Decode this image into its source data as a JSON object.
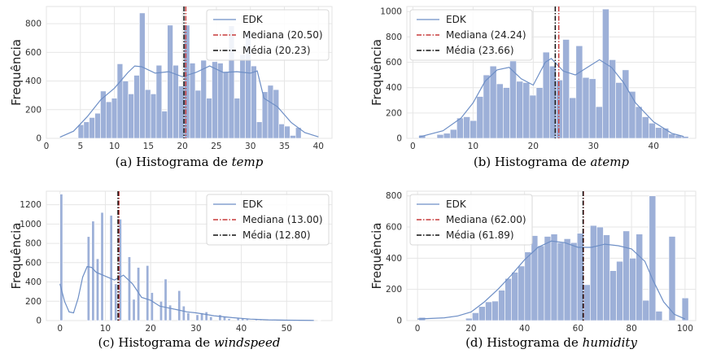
{
  "chart_data": [
    {
      "type": "bar",
      "caption_prefix": "(a) Histograma de ",
      "caption_var": "temp",
      "ylabel": "Frequência",
      "xlim": [
        0,
        42
      ],
      "ylim": [
        0,
        920
      ],
      "xticks": [
        0,
        5,
        10,
        15,
        20,
        25,
        30,
        35,
        40
      ],
      "yticks": [
        0,
        200,
        400,
        600,
        800
      ],
      "bin_width": 0.82,
      "bins_x": [
        1.0,
        4.67,
        5.49,
        6.31,
        7.13,
        7.95,
        8.77,
        9.59,
        10.41,
        11.23,
        12.05,
        12.87,
        13.69,
        14.51,
        15.33,
        16.15,
        16.97,
        17.79,
        18.61,
        19.43,
        20.25,
        21.07,
        21.89,
        22.71,
        23.53,
        24.35,
        25.17,
        25.99,
        26.81,
        27.63,
        28.45,
        29.27,
        30.09,
        30.91,
        31.73,
        32.55,
        33.37,
        34.19,
        35.01,
        35.83,
        36.65,
        37.47
      ],
      "bins_y": [
        0,
        95,
        115,
        145,
        175,
        330,
        255,
        280,
        520,
        400,
        310,
        440,
        875,
        340,
        310,
        510,
        190,
        790,
        510,
        365,
        790,
        525,
        335,
        545,
        280,
        535,
        525,
        465,
        785,
        280,
        585,
        745,
        505,
        115,
        325,
        370,
        340,
        100,
        85,
        20,
        75,
        0
      ],
      "kde_x": [
        2,
        4,
        6,
        8,
        10,
        12,
        13,
        14,
        16,
        18,
        20,
        22,
        24,
        26,
        28,
        30,
        31,
        32,
        34,
        36,
        38,
        40
      ],
      "kde_y": [
        8,
        50,
        150,
        270,
        350,
        460,
        505,
        500,
        455,
        465,
        430,
        460,
        505,
        460,
        465,
        455,
        470,
        280,
        220,
        110,
        40,
        10
      ],
      "legend_pos": "upper-right",
      "legend": [
        {
          "label": "EDK",
          "color": "#6e8fc6",
          "style": "solid"
        },
        {
          "label": "Mediana (20.50)",
          "color": "#c73a3a",
          "style": "dashdot"
        },
        {
          "label": "Média (20.23)",
          "color": "#111111",
          "style": "dashdot"
        }
      ],
      "median": 20.5,
      "mean": 20.23
    },
    {
      "type": "bar",
      "caption_prefix": "(b) Histograma de ",
      "caption_var": "atemp",
      "ylabel": "Frequência",
      "xlim": [
        -1,
        47
      ],
      "ylim": [
        0,
        1040
      ],
      "xticks": [
        0,
        10,
        20,
        30,
        40
      ],
      "yticks": [
        0,
        200,
        400,
        600,
        800,
        1000
      ],
      "bin_width": 1.1,
      "bins_x": [
        1.0,
        4.0,
        5.1,
        6.2,
        7.3,
        8.4,
        9.5,
        10.6,
        11.7,
        12.8,
        13.9,
        15.0,
        16.1,
        17.2,
        18.3,
        19.4,
        20.5,
        21.6,
        22.7,
        23.8,
        24.9,
        26.0,
        27.1,
        28.2,
        29.3,
        30.4,
        31.5,
        32.6,
        33.7,
        34.8,
        35.9,
        37.0,
        38.1,
        39.2,
        40.3,
        41.4,
        42.5,
        43.6,
        44.7
      ],
      "bins_y": [
        25,
        30,
        40,
        70,
        160,
        170,
        140,
        330,
        500,
        570,
        430,
        400,
        610,
        450,
        440,
        340,
        400,
        680,
        570,
        460,
        780,
        320,
        730,
        480,
        470,
        250,
        1020,
        620,
        440,
        540,
        370,
        250,
        170,
        120,
        85,
        80,
        35,
        25,
        15
      ],
      "kde_x": [
        1,
        5,
        8,
        10,
        12,
        14,
        16,
        18,
        20,
        22,
        23,
        25,
        27,
        29,
        31,
        33,
        35,
        37,
        40,
        43,
        45
      ],
      "kde_y": [
        10,
        60,
        160,
        280,
        450,
        540,
        560,
        470,
        420,
        600,
        630,
        530,
        500,
        560,
        620,
        560,
        440,
        280,
        130,
        40,
        15
      ],
      "legend_pos": "upper-left",
      "legend": [
        {
          "label": "EDK",
          "color": "#6e8fc6",
          "style": "solid"
        },
        {
          "label": "Mediana (24.24)",
          "color": "#c73a3a",
          "style": "dashdot"
        },
        {
          "label": "Média (23.66)",
          "color": "#111111",
          "style": "dashdot"
        }
      ],
      "median": 24.24,
      "mean": 23.66
    },
    {
      "type": "bar",
      "caption_prefix": "(c) Histograma de ",
      "caption_var": "windspeed",
      "ylabel": "Frequência",
      "xlim": [
        -3,
        60
      ],
      "ylim": [
        0,
        1340
      ],
      "xticks": [
        0,
        10,
        20,
        30,
        40,
        50
      ],
      "yticks": [
        0,
        200,
        400,
        600,
        800,
        1000,
        1200
      ],
      "bin_width": 0.6,
      "bins_x": [
        0,
        6.0,
        7.0,
        8.0,
        9.0,
        11.0,
        12.0,
        13.0,
        15.0,
        16.0,
        17.0,
        19.0,
        20.0,
        22.0,
        23.0,
        24.0,
        26.0,
        27.0,
        28.0,
        30.0,
        31.0,
        32.0,
        33.0,
        35.0,
        36.0,
        37.0,
        39.0,
        40.0,
        41.0,
        43.0,
        44.0,
        46.0,
        47.0,
        50.8,
        51.9,
        56.9
      ],
      "bins_y": [
        1310,
        870,
        1030,
        640,
        1120,
        1090,
        380,
        1050,
        660,
        220,
        550,
        570,
        290,
        200,
        430,
        160,
        310,
        150,
        80,
        60,
        80,
        90,
        40,
        60,
        40,
        20,
        30,
        25,
        15,
        20,
        10,
        8,
        8,
        5,
        4,
        2
      ],
      "kde_x": [
        0,
        1,
        2,
        3,
        4,
        5,
        6,
        7,
        8,
        10,
        12,
        14,
        16,
        18,
        20,
        22,
        24,
        26,
        28,
        30,
        34,
        38,
        42,
        46,
        50,
        56
      ],
      "kde_y": [
        380,
        200,
        90,
        80,
        230,
        450,
        560,
        550,
        500,
        460,
        420,
        470,
        380,
        240,
        210,
        150,
        130,
        110,
        90,
        80,
        50,
        30,
        15,
        8,
        4,
        2
      ],
      "legend_pos": "upper-right",
      "legend": [
        {
          "label": "EDK",
          "color": "#6e8fc6",
          "style": "solid"
        },
        {
          "label": "Mediana (13.00)",
          "color": "#c73a3a",
          "style": "dashdot"
        },
        {
          "label": "Média (12.80)",
          "color": "#111111",
          "style": "dashdot"
        }
      ],
      "median": 13.0,
      "mean": 12.8
    },
    {
      "type": "bar",
      "caption_prefix": "(d) Histograma de ",
      "caption_var": "humidity",
      "ylabel": "Frequência",
      "xlim": [
        -4,
        104
      ],
      "ylim": [
        0,
        830
      ],
      "xticks": [
        0,
        20,
        40,
        60,
        80,
        100
      ],
      "yticks": [
        0,
        200,
        400,
        600,
        800
      ],
      "bin_width": 2.45,
      "bins_x": [
        0.5,
        18.0,
        20.45,
        22.9,
        25.35,
        27.8,
        30.25,
        32.7,
        35.15,
        37.6,
        40.05,
        42.5,
        44.95,
        47.4,
        49.85,
        52.3,
        54.75,
        57.2,
        59.65,
        62.1,
        64.55,
        67.0,
        69.45,
        71.9,
        74.35,
        76.8,
        79.25,
        81.7,
        84.15,
        86.6,
        89.05,
        91.5,
        93.95,
        96.4,
        98.85
      ],
      "bins_y": [
        20,
        15,
        50,
        90,
        120,
        125,
        195,
        270,
        310,
        350,
        440,
        545,
        480,
        540,
        555,
        500,
        525,
        500,
        560,
        230,
        610,
        600,
        550,
        320,
        380,
        575,
        400,
        555,
        130,
        800,
        60,
        0,
        540,
        0,
        145
      ],
      "kde_x": [
        0,
        10,
        15,
        20,
        25,
        30,
        35,
        40,
        45,
        50,
        55,
        60,
        65,
        70,
        75,
        80,
        85,
        88,
        92,
        96,
        100
      ],
      "kde_y": [
        10,
        18,
        30,
        55,
        120,
        200,
        290,
        390,
        470,
        510,
        500,
        470,
        470,
        490,
        480,
        460,
        380,
        260,
        120,
        40,
        10
      ],
      "legend_pos": "upper-left",
      "legend": [
        {
          "label": "EDK",
          "color": "#6e8fc6",
          "style": "solid"
        },
        {
          "label": "Mediana (62.00)",
          "color": "#c73a3a",
          "style": "dashdot"
        },
        {
          "label": "Média (61.89)",
          "color": "#111111",
          "style": "dashdot"
        }
      ],
      "median": 62.0,
      "mean": 61.89
    }
  ]
}
